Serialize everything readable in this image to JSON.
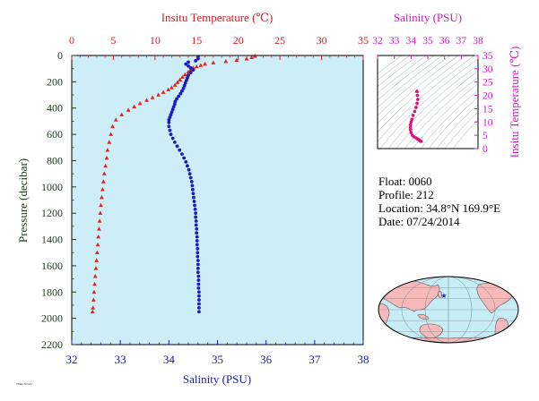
{
  "chart_data": [
    {
      "type": "scatter",
      "top_axis_title": "Insitu Temperature (℃)",
      "bottom_axis_title": "Salinity (PSU)",
      "left_axis_title": "Pressure (decibar)",
      "temp_ticks": [
        "0",
        "5",
        "10",
        "15",
        "20",
        "25",
        "30",
        "35"
      ],
      "sal_ticks": [
        "32",
        "33",
        "34",
        "35",
        "36",
        "37",
        "38"
      ],
      "pressure_ticks": [
        "0",
        "200",
        "400",
        "600",
        "800",
        "1000",
        "1200",
        "1400",
        "1600",
        "1800",
        "2000",
        "2200"
      ],
      "xlim_temperature": [
        0,
        35
      ],
      "xlim_salinity": [
        32,
        38
      ],
      "ylim_pressure": [
        0,
        2200
      ],
      "y_inverted": true,
      "background": "#cdeef7",
      "series": [
        {
          "marker": "triangle",
          "color": "#e8201e",
          "x_unit": "temperature",
          "points": [
            [
              22.0,
              5
            ],
            [
              21.6,
              15
            ],
            [
              21.0,
              25
            ],
            [
              19.8,
              35
            ],
            [
              18.5,
              45
            ],
            [
              17.0,
              55
            ],
            [
              16.0,
              65
            ],
            [
              15.5,
              75
            ],
            [
              15.0,
              85
            ],
            [
              14.6,
              95
            ],
            [
              14.3,
              110
            ],
            [
              14.0,
              125
            ],
            [
              13.6,
              145
            ],
            [
              13.3,
              165
            ],
            [
              13.0,
              185
            ],
            [
              12.7,
              205
            ],
            [
              12.4,
              225
            ],
            [
              12.0,
              245
            ],
            [
              11.6,
              260
            ],
            [
              11.0,
              280
            ],
            [
              10.4,
              300
            ],
            [
              9.7,
              320
            ],
            [
              9.0,
              340
            ],
            [
              8.2,
              365
            ],
            [
              7.5,
              390
            ],
            [
              6.8,
              415
            ],
            [
              6.0,
              450
            ],
            [
              5.3,
              490
            ],
            [
              4.9,
              540
            ],
            [
              4.7,
              600
            ],
            [
              4.5,
              660
            ],
            [
              4.3,
              720
            ],
            [
              4.2,
              780
            ],
            [
              4.05,
              840
            ],
            [
              3.9,
              900
            ],
            [
              3.8,
              960
            ],
            [
              3.7,
              1020
            ],
            [
              3.6,
              1080
            ],
            [
              3.5,
              1140
            ],
            [
              3.42,
              1200
            ],
            [
              3.35,
              1260
            ],
            [
              3.28,
              1320
            ],
            [
              3.2,
              1380
            ],
            [
              3.12,
              1440
            ],
            [
              3.05,
              1500
            ],
            [
              2.98,
              1560
            ],
            [
              2.9,
              1620
            ],
            [
              2.82,
              1680
            ],
            [
              2.75,
              1740
            ],
            [
              2.68,
              1800
            ],
            [
              2.62,
              1860
            ],
            [
              2.55,
              1920
            ],
            [
              2.5,
              1950
            ]
          ]
        },
        {
          "marker": "dot",
          "color": "#1a1ac8",
          "x_unit": "salinity",
          "points": [
            [
              34.6,
              10
            ],
            [
              34.6,
              25
            ],
            [
              34.55,
              40
            ],
            [
              34.4,
              50
            ],
            [
              34.35,
              65
            ],
            [
              34.4,
              80
            ],
            [
              34.45,
              95
            ],
            [
              34.5,
              110
            ],
            [
              34.45,
              130
            ],
            [
              34.4,
              150
            ],
            [
              34.38,
              170
            ],
            [
              34.36,
              190
            ],
            [
              34.34,
              210
            ],
            [
              34.32,
              230
            ],
            [
              34.3,
              250
            ],
            [
              34.27,
              270
            ],
            [
              34.24,
              290
            ],
            [
              34.2,
              310
            ],
            [
              34.16,
              330
            ],
            [
              34.13,
              350
            ],
            [
              34.12,
              370
            ],
            [
              34.1,
              390
            ],
            [
              34.08,
              410
            ],
            [
              34.06,
              430
            ],
            [
              34.04,
              450
            ],
            [
              34.02,
              470
            ],
            [
              34.0,
              490
            ],
            [
              34.0,
              510
            ],
            [
              34.0,
              540
            ],
            [
              34.02,
              570
            ],
            [
              34.04,
              600
            ],
            [
              34.08,
              630
            ],
            [
              34.12,
              660
            ],
            [
              34.17,
              690
            ],
            [
              34.22,
              720
            ],
            [
              34.27,
              750
            ],
            [
              34.31,
              780
            ],
            [
              34.35,
              810
            ],
            [
              34.38,
              840
            ],
            [
              34.41,
              870
            ],
            [
              34.43,
              900
            ],
            [
              34.45,
              930
            ],
            [
              34.47,
              960
            ],
            [
              34.48,
              990
            ],
            [
              34.49,
              1020
            ],
            [
              34.5,
              1050
            ],
            [
              34.51,
              1080
            ],
            [
              34.52,
              1110
            ],
            [
              34.53,
              1140
            ],
            [
              34.54,
              1170
            ],
            [
              34.55,
              1200
            ],
            [
              34.55,
              1230
            ],
            [
              34.56,
              1260
            ],
            [
              34.56,
              1290
            ],
            [
              34.57,
              1320
            ],
            [
              34.57,
              1350
            ],
            [
              34.58,
              1380
            ],
            [
              34.58,
              1410
            ],
            [
              34.58,
              1440
            ],
            [
              34.59,
              1470
            ],
            [
              34.59,
              1500
            ],
            [
              34.59,
              1530
            ],
            [
              34.6,
              1560
            ],
            [
              34.6,
              1590
            ],
            [
              34.6,
              1620
            ],
            [
              34.6,
              1650
            ],
            [
              34.61,
              1680
            ],
            [
              34.61,
              1710
            ],
            [
              34.61,
              1740
            ],
            [
              34.61,
              1770
            ],
            [
              34.62,
              1800
            ],
            [
              34.62,
              1830
            ],
            [
              34.62,
              1860
            ],
            [
              34.62,
              1890
            ],
            [
              34.62,
              1920
            ],
            [
              34.62,
              1950
            ]
          ]
        }
      ]
    },
    {
      "type": "scatter",
      "title": "Salinity (PSU)",
      "right_axis_title": "Insitu Temperature (℃)",
      "sal_ticks": [
        "32",
        "33",
        "34",
        "35",
        "36",
        "37",
        "38"
      ],
      "temp_ticks": [
        "0",
        "5",
        "10",
        "15",
        "20",
        "25",
        "30",
        "35"
      ],
      "xlim_salinity": [
        32,
        38
      ],
      "ylim_temperature": [
        0,
        35
      ],
      "color": "#e0107a",
      "points": [
        [
          34.35,
          21.5
        ],
        [
          34.38,
          20.0
        ],
        [
          34.4,
          18.5
        ],
        [
          34.36,
          17.0
        ],
        [
          34.3,
          15.5
        ],
        [
          34.22,
          14.0
        ],
        [
          34.12,
          12.5
        ],
        [
          34.05,
          11.0
        ],
        [
          34.0,
          10.0
        ],
        [
          33.97,
          9.0
        ],
        [
          33.96,
          8.0
        ],
        [
          33.97,
          7.0
        ],
        [
          34.0,
          6.0
        ],
        [
          34.08,
          5.0
        ],
        [
          34.18,
          4.4
        ],
        [
          34.3,
          4.0
        ],
        [
          34.38,
          3.7
        ],
        [
          34.45,
          3.4
        ],
        [
          34.5,
          3.1
        ],
        [
          34.55,
          2.9
        ],
        [
          34.6,
          2.7
        ]
      ]
    }
  ],
  "info": {
    "float": "Float:  0060",
    "profile": "Profile:  212",
    "location": "Location:  34.8°N  169.9°E",
    "date": "Date:  07/24/2014"
  },
  "map": {
    "marker": "★",
    "ocean_color": "#c6ecf6",
    "land_color": "#f5b9b9"
  },
  "footer_small_text": "PMEL/NOAA"
}
